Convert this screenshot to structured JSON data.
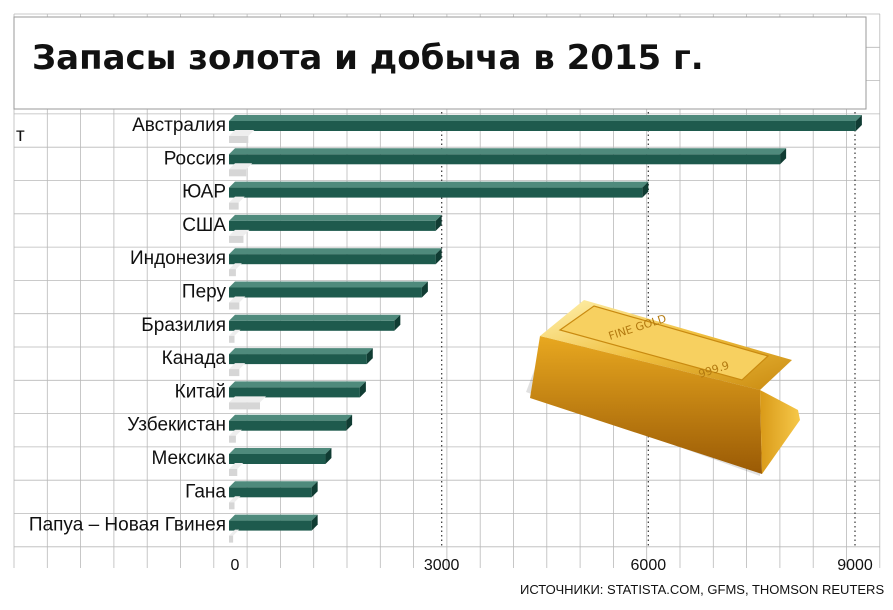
{
  "chart_data": {
    "type": "bar",
    "title": "Запасы золота и добыча в 2015 г.",
    "unit": "т",
    "categories": [
      "Австралия",
      "Россия",
      "ЮАР",
      "США",
      "Индонезия",
      "Перу",
      "Бразилия",
      "Канада",
      "Китай",
      "Узбекистан",
      "Мексика",
      "Гана",
      "Папуа – Новая Гвинея"
    ],
    "series": [
      {
        "values": [
          9100,
          8000,
          6000,
          3000,
          3000,
          2800,
          2400,
          2000,
          1900,
          1700,
          1400,
          1200,
          1200
        ]
      },
      {
        "values": [
          280,
          250,
          140,
          210,
          100,
          150,
          80,
          150,
          450,
          100,
          120,
          80,
          60
        ]
      }
    ],
    "xticks": [
      0,
      3000,
      6000,
      9000
    ],
    "xlim": [
      0,
      9000
    ],
    "grid": true,
    "colors": {
      "reserves": "#1e5a4d",
      "production": "#d6d6d6",
      "grid": "#b9b9b9"
    },
    "source": "ИСТОЧНИКИ: STATISTA.COM, GFMS, THOMSON REUTERS",
    "decoration": "gold-bar-image"
  }
}
